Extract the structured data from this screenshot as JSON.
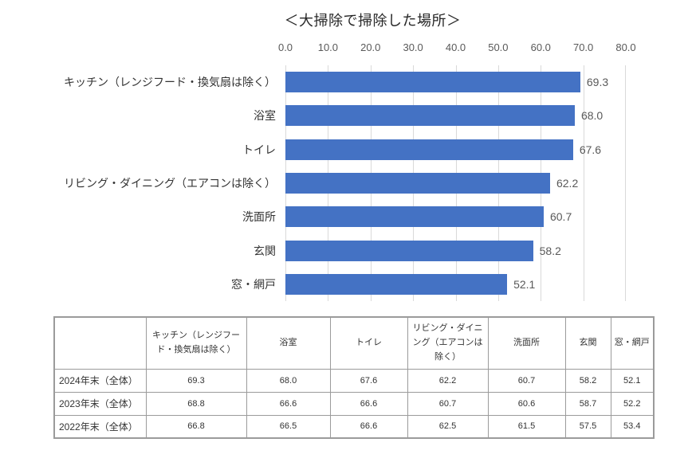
{
  "chart_data": {
    "type": "bar",
    "orientation": "horizontal",
    "title": "＜大掃除で掃除した場所＞",
    "categories": [
      "キッチン（レンジフード・換気扇は除く）",
      "浴室",
      "トイレ",
      "リビング・ダイニング（エアコンは除く）",
      "洗面所",
      "玄関",
      "窓・網戸"
    ],
    "values": [
      69.3,
      68.0,
      67.6,
      62.2,
      60.7,
      58.2,
      52.1
    ],
    "value_labels": [
      "69.3",
      "68.0",
      "67.6",
      "62.2",
      "60.7",
      "58.2",
      "52.1"
    ],
    "xlim": [
      0,
      80
    ],
    "x_ticks": [
      "0.0",
      "10.0",
      "20.0",
      "30.0",
      "40.0",
      "50.0",
      "60.0",
      "70.0",
      "80.0"
    ],
    "grid": true,
    "legend": "none",
    "bar_color": "#4472C4",
    "gridline_color": "#d9d9d9"
  },
  "table": {
    "columns": [
      "",
      "キッチン（レンジフード・換気扇は除く）",
      "浴室",
      "トイレ",
      "リビング・ダイニング（エアコンは除く）",
      "洗面所",
      "玄関",
      "窓・網戸"
    ],
    "rows": [
      {
        "label": "2024年末（全体）",
        "values": [
          "69.3",
          "68.0",
          "67.6",
          "62.2",
          "60.7",
          "58.2",
          "52.1"
        ]
      },
      {
        "label": "2023年末（全体）",
        "values": [
          "68.8",
          "66.6",
          "66.6",
          "60.7",
          "60.6",
          "58.7",
          "52.2"
        ]
      },
      {
        "label": "2022年末（全体）",
        "values": [
          "66.8",
          "66.5",
          "66.6",
          "62.5",
          "61.5",
          "57.5",
          "53.4"
        ]
      }
    ]
  }
}
